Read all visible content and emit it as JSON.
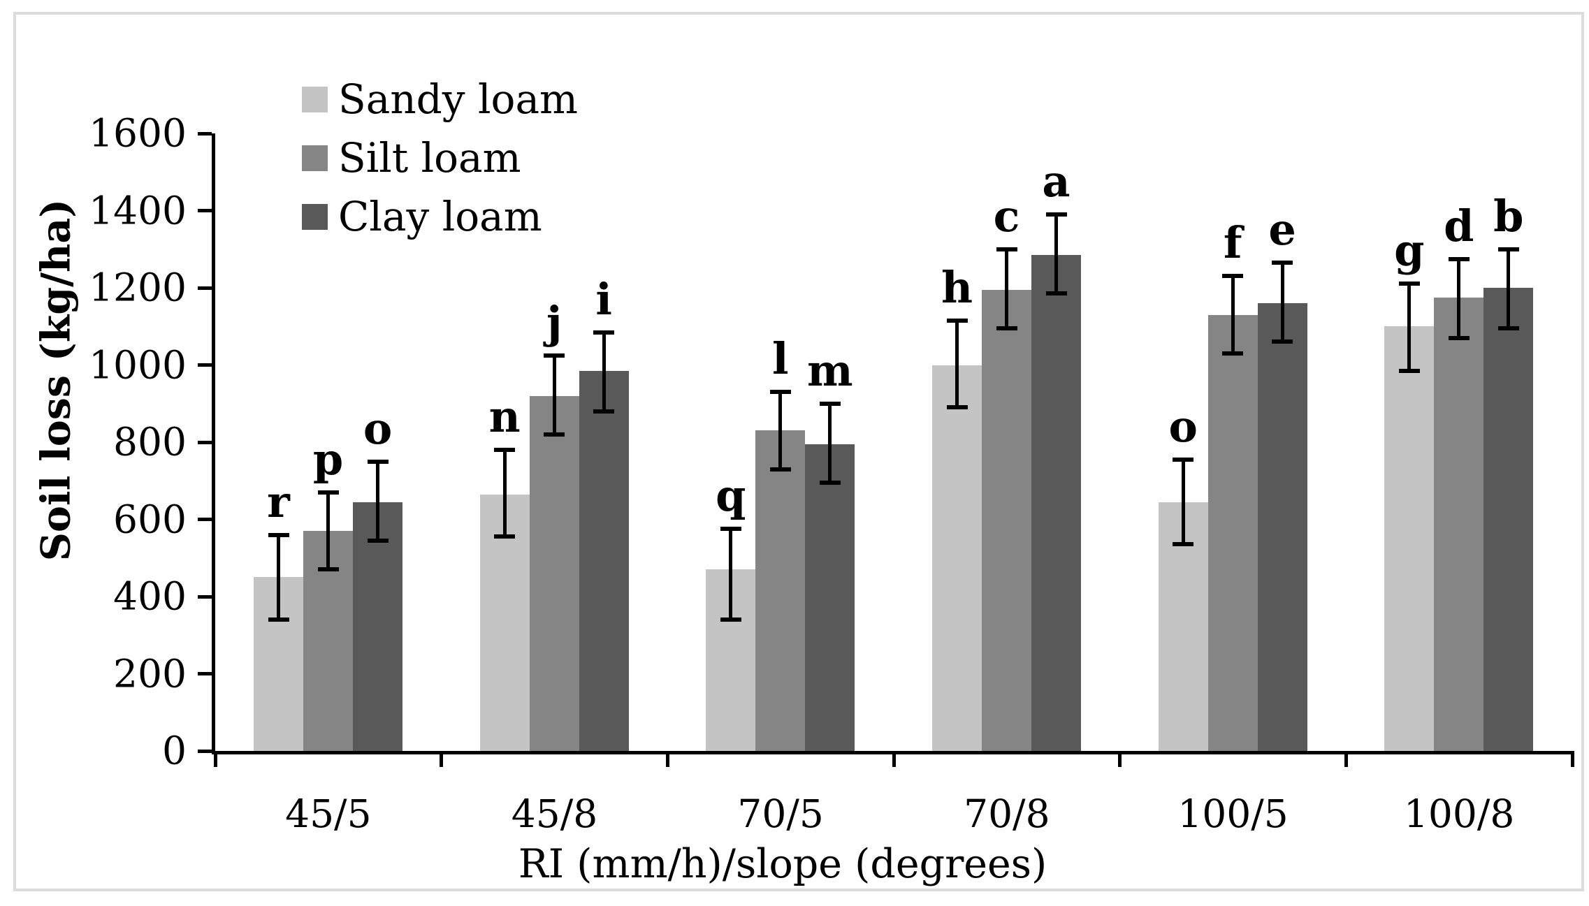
{
  "figure": {
    "background_color": "#ffffff",
    "frame_border_color": "#dcdcdc",
    "axis_color": "#000000"
  },
  "chart_data": {
    "type": "bar",
    "title": "",
    "xlabel": "RI (mm/h)/slope (degrees)",
    "ylabel": "Soil loss (kg/ha)",
    "ylim": [
      0,
      1600
    ],
    "ytick_step": 200,
    "yticks": [
      0,
      200,
      400,
      600,
      800,
      1000,
      1200,
      1400,
      1600
    ],
    "categories": [
      "45/5",
      "45/8",
      "70/5",
      "70/8",
      "100/5",
      "100/8"
    ],
    "grid": false,
    "legend_position": "top-left-inside",
    "error_bars": true,
    "series": [
      {
        "name": "Sandy loam",
        "color": "#c4c4c4",
        "values": [
          450,
          665,
          470,
          1000,
          645,
          1100
        ],
        "err_low": [
          340,
          555,
          340,
          890,
          535,
          985
        ],
        "err_high": [
          560,
          780,
          575,
          1115,
          755,
          1210
        ],
        "sig_letters": [
          "r",
          "n",
          "q",
          "h",
          "o",
          "g"
        ]
      },
      {
        "name": "Silt loam",
        "color": "#858585",
        "values": [
          570,
          920,
          830,
          1195,
          1130,
          1175
        ],
        "err_low": [
          470,
          820,
          730,
          1095,
          1030,
          1070
        ],
        "err_high": [
          670,
          1025,
          930,
          1300,
          1230,
          1275
        ],
        "sig_letters": [
          "p",
          "j",
          "l",
          "c",
          "f",
          "d"
        ]
      },
      {
        "name": "Clay loam",
        "color": "#595959",
        "values": [
          645,
          985,
          795,
          1285,
          1160,
          1200
        ],
        "err_low": [
          545,
          880,
          695,
          1185,
          1060,
          1095
        ],
        "err_high": [
          750,
          1085,
          900,
          1390,
          1265,
          1300
        ],
        "sig_letters": [
          "o",
          "i",
          "m",
          "a",
          "e",
          "b"
        ]
      }
    ]
  }
}
